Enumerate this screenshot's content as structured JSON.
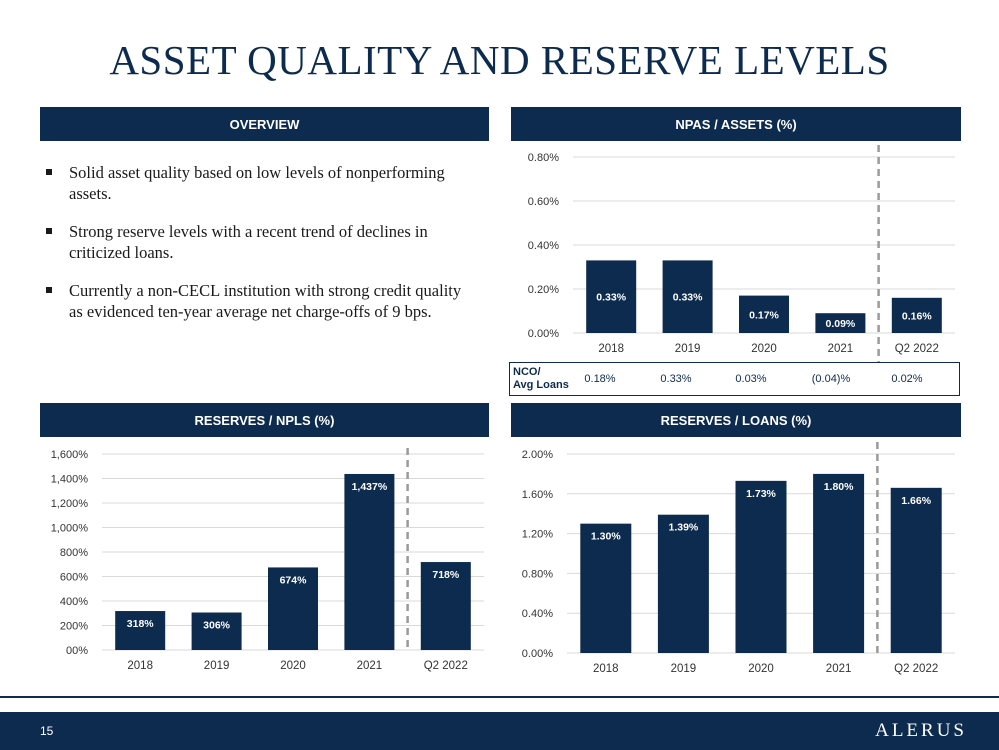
{
  "title": "ASSET QUALITY AND RESERVE LEVELS",
  "colors": {
    "bar": "#0d2b4e",
    "header_bg": "#0d2b4e",
    "divider": "#9a9a9a"
  },
  "overview": {
    "header": "OVERVIEW",
    "bullets": [
      "Solid asset quality based on low levels of nonperforming assets.",
      "Strong reserve levels with a recent trend of declines in criticized loans.",
      "Currently a non-CECL institution with strong credit quality as evidenced ten-year average net charge-offs of 9 bps."
    ]
  },
  "nco": {
    "label_line1": "NCO/",
    "label_line2": "Avg Loans",
    "values": [
      "0.18%",
      "0.33%",
      "0.03%",
      "(0.04)%",
      "0.02%"
    ]
  },
  "chart_data": [
    {
      "id": "npas",
      "type": "bar",
      "title": "NPAS / ASSETS (%)",
      "categories": [
        "2018",
        "2019",
        "2020",
        "2021",
        "Q2 2022"
      ],
      "values": [
        0.33,
        0.33,
        0.17,
        0.09,
        0.16
      ],
      "data_labels": [
        "0.33%",
        "0.33%",
        "0.17%",
        "0.09%",
        "0.16%"
      ],
      "ylim": [
        0,
        0.8
      ],
      "yticks": [
        0,
        0.2,
        0.4,
        0.6,
        0.8
      ],
      "ytick_labels": [
        "0.00%",
        "0.20%",
        "0.40%",
        "0.60%",
        "0.80%"
      ],
      "grid": true,
      "divider_after_index": 3
    },
    {
      "id": "res-npls",
      "type": "bar",
      "title": "RESERVES / NPLS (%)",
      "categories": [
        "2018",
        "2019",
        "2020",
        "2021",
        "Q2 2022"
      ],
      "values": [
        318,
        306,
        674,
        1437,
        718
      ],
      "data_labels": [
        "318%",
        "306%",
        "674%",
        "1,437%",
        "718%"
      ],
      "ylim": [
        0,
        1600
      ],
      "yticks": [
        0,
        200,
        400,
        600,
        800,
        1000,
        1200,
        1400,
        1600
      ],
      "ytick_labels": [
        "00%",
        "200%",
        "400%",
        "600%",
        "800%",
        "1,000%",
        "1,200%",
        "1,400%",
        "1,600%"
      ],
      "grid": true,
      "divider_after_index": 3
    },
    {
      "id": "res-loans",
      "type": "bar",
      "title": "RESERVES / LOANS (%)",
      "categories": [
        "2018",
        "2019",
        "2020",
        "2021",
        "Q2 2022"
      ],
      "values": [
        1.3,
        1.39,
        1.73,
        1.8,
        1.66
      ],
      "data_labels": [
        "1.30%",
        "1.39%",
        "1.73%",
        "1.80%",
        "1.66%"
      ],
      "ylim": [
        0,
        2.0
      ],
      "yticks": [
        0,
        0.4,
        0.8,
        1.2,
        1.6,
        2.0
      ],
      "ytick_labels": [
        "0.00%",
        "0.40%",
        "0.80%",
        "1.20%",
        "1.60%",
        "2.00%"
      ],
      "grid": true,
      "divider_after_index": 3
    }
  ],
  "footer": {
    "page_number": "15",
    "logo_text": "ALERUS"
  }
}
